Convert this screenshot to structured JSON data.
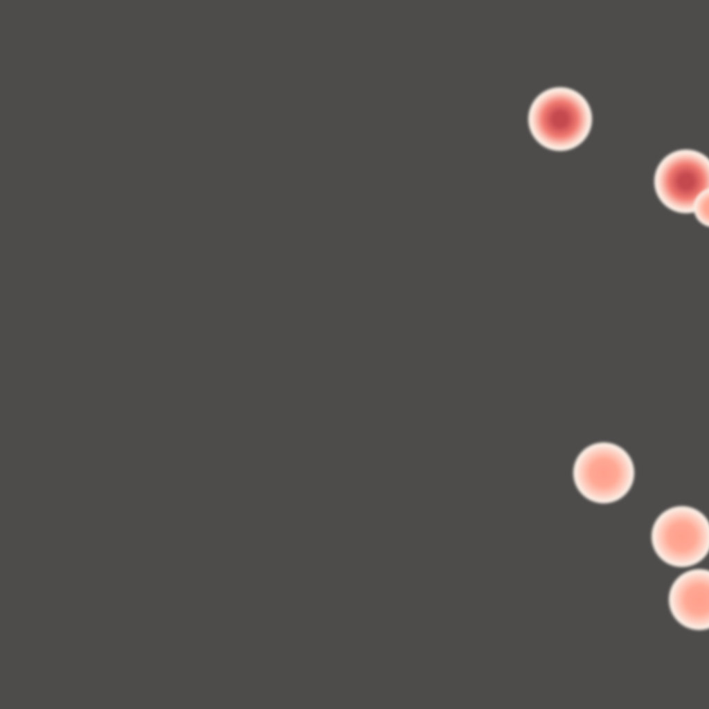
{
  "scene": {
    "background_color": "#4e4c4b",
    "rim_color": "#fbefe6",
    "dot_count": 6,
    "dots": [
      {
        "id": "dot-1",
        "core_color": "#c4484f",
        "mid_color": "#f27b72",
        "edge_color": "#fdd6c9",
        "style": "dark-core"
      },
      {
        "id": "dot-2",
        "core_color": "#c4484f",
        "mid_color": "#f27b72",
        "edge_color": "#fdd6c9",
        "style": "dark-core"
      },
      {
        "id": "dot-3",
        "core_color": "#ff9f8c",
        "mid_color": "#ffa894",
        "edge_color": "#fdd8cb",
        "style": "light-core"
      },
      {
        "id": "dot-4",
        "core_color": "#ff9f8c",
        "mid_color": "#ffa894",
        "edge_color": "#fdd8cb",
        "style": "light-core"
      },
      {
        "id": "dot-5",
        "core_color": "#ff9f8c",
        "mid_color": "#ffa894",
        "edge_color": "#fdd8cb",
        "style": "light-core"
      },
      {
        "id": "dot-6",
        "core_color": "#ff9f8c",
        "mid_color": "#ffa894",
        "edge_color": "#fdd8cb",
        "style": "light-core"
      }
    ]
  }
}
